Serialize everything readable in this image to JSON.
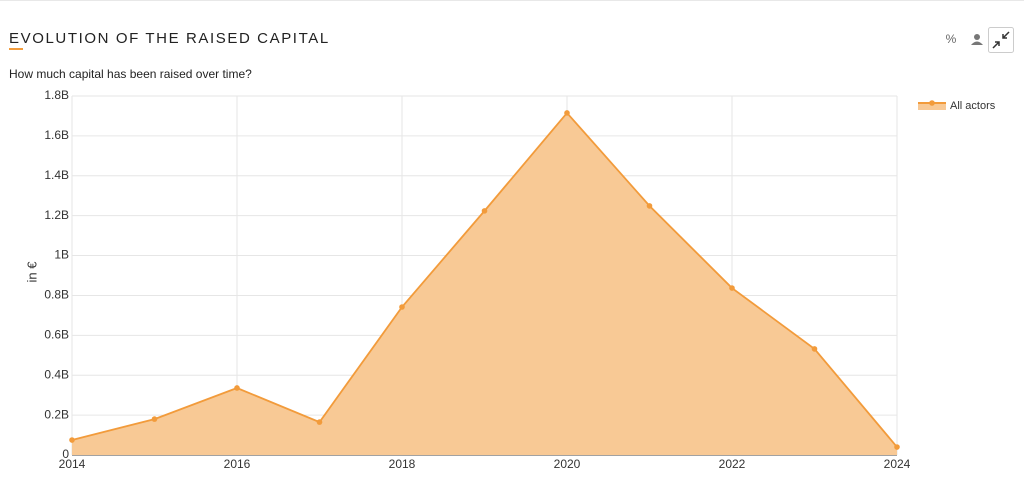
{
  "toolbar": {
    "percent": "%"
  },
  "chart_data": {
    "type": "area",
    "title": "EVOLUTION OF THE RAISED CAPITAL",
    "subtitle": "How much capital has been raised over time?",
    "y_label": "in €",
    "x": [
      2014,
      2015,
      2016,
      2017,
      2018,
      2019,
      2020,
      2021,
      2022,
      2023,
      2024
    ],
    "series": [
      {
        "name": "All actors",
        "color": "#f29b3b",
        "fill": "#f8c995",
        "values": [
          0.075,
          0.18,
          0.336,
          0.165,
          0.742,
          1.224,
          1.715,
          1.249,
          0.837,
          0.532,
          0.04
        ]
      }
    ],
    "xlim": [
      2014,
      2024
    ],
    "xticks": [
      2014,
      2016,
      2018,
      2020,
      2022,
      2024
    ],
    "ylim": [
      0,
      1.8
    ],
    "yticks": [
      0,
      {
        "value": 0.2,
        "label": "0.2B"
      },
      {
        "value": 0.4,
        "label": "0.4B"
      },
      {
        "value": 0.6,
        "label": "0.6B"
      },
      {
        "value": 0.8,
        "label": "0.8B"
      },
      {
        "value": 1,
        "label": "1B"
      },
      {
        "value": 1.2,
        "label": "1.2B"
      },
      {
        "value": 1.4,
        "label": "1.4B"
      },
      {
        "value": 1.6,
        "label": "1.6B"
      },
      {
        "value": 1.8,
        "label": "1.8B"
      }
    ],
    "grid": true,
    "legend": "top-right"
  }
}
